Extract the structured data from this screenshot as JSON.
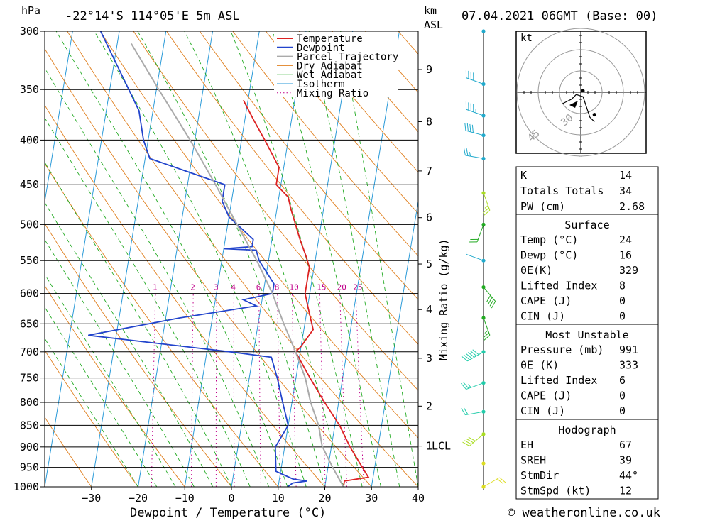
{
  "header": {
    "location": "-22°14'S 114°05'E 5m ASL",
    "datetime": "07.04.2021 06GMT (Base: 00)",
    "hpa_unit": "hPa",
    "km_unit": "km",
    "asl_unit": "ASL",
    "copyright": "© weatheronline.co.uk"
  },
  "chart_data": {
    "type": "line",
    "title": "",
    "xlabel": "Dewpoint / Temperature (°C)",
    "ylabel": "hPa",
    "right_ylabel": "Mixing Ratio (g/kg)",
    "xlim": [
      -40,
      40
    ],
    "ylim": [
      1000,
      300
    ],
    "y_log": true,
    "skew": true,
    "x_ticks": [
      -30,
      -20,
      -10,
      0,
      10,
      20,
      30,
      40
    ],
    "pressure_levels": [
      300,
      350,
      400,
      450,
      500,
      550,
      600,
      650,
      700,
      750,
      800,
      850,
      900,
      950,
      1000
    ],
    "km_ticks": [
      {
        "label": "9",
        "p": 332
      },
      {
        "label": "8",
        "p": 381
      },
      {
        "label": "7",
        "p": 434
      },
      {
        "label": "6",
        "p": 491
      },
      {
        "label": "5",
        "p": 555
      },
      {
        "label": "4",
        "p": 626
      },
      {
        "label": "3",
        "p": 712
      },
      {
        "label": "2",
        "p": 808
      },
      {
        "label": "1",
        "p": 898
      }
    ],
    "lcl_label": "LCL",
    "lcl_p": 898,
    "mixing_ratios": [
      "1",
      "2",
      "3",
      "4",
      "6",
      "8",
      "10",
      "15",
      "20",
      "25"
    ],
    "mixing_ratio_values": [
      1,
      2,
      3,
      4,
      6,
      8,
      10,
      15,
      20,
      25
    ],
    "legend": [
      "Temperature",
      "Dewpoint",
      "Parcel Trajectory",
      "Dry Adiabat",
      "Wet Adiabat",
      "Isotherm",
      "Mixing Ratio"
    ],
    "colors": {
      "temperature": "#dd2222",
      "dewpoint": "#2244cc",
      "parcel": "#aaaaaa",
      "dry_adiabat": "#e08020",
      "wet_adiabat": "#22aa22",
      "isotherm": "#2a9ad8",
      "mixing_ratio": "#c0008a"
    },
    "series": [
      {
        "name": "Temperature",
        "points": [
          [
            1000,
            24
          ],
          [
            985,
            24
          ],
          [
            975,
            29
          ],
          [
            960,
            28
          ],
          [
            900,
            24
          ],
          [
            850,
            21
          ],
          [
            800,
            17
          ],
          [
            750,
            13
          ],
          [
            700,
            9
          ],
          [
            690,
            10
          ],
          [
            660,
            12
          ],
          [
            640,
            11
          ],
          [
            620,
            10
          ],
          [
            600,
            9
          ],
          [
            580,
            9
          ],
          [
            560,
            9
          ],
          [
            545,
            8
          ],
          [
            520,
            6
          ],
          [
            480,
            3
          ],
          [
            465,
            2
          ],
          [
            450,
            -1
          ],
          [
            430,
            -1
          ],
          [
            400,
            -5
          ],
          [
            380,
            -8
          ],
          [
            360,
            -11
          ]
        ]
      },
      {
        "name": "Dewpoint",
        "points": [
          [
            1000,
            12
          ],
          [
            990,
            13
          ],
          [
            985,
            16
          ],
          [
            980,
            13
          ],
          [
            975,
            12
          ],
          [
            960,
            9
          ],
          [
            900,
            8
          ],
          [
            850,
            10
          ],
          [
            800,
            8
          ],
          [
            750,
            6
          ],
          [
            710,
            4
          ],
          [
            700,
            -5
          ],
          [
            670,
            -36
          ],
          [
            640,
            -17
          ],
          [
            620,
            -1
          ],
          [
            610,
            -4
          ],
          [
            605,
            -1
          ],
          [
            600,
            2
          ],
          [
            585,
            2
          ],
          [
            550,
            -2
          ],
          [
            535,
            -3
          ],
          [
            533,
            -10
          ],
          [
            530,
            -4
          ],
          [
            520,
            -4
          ],
          [
            490,
            -10
          ],
          [
            470,
            -12
          ],
          [
            450,
            -12
          ],
          [
            420,
            -29
          ],
          [
            400,
            -31
          ],
          [
            370,
            -33
          ],
          [
            300,
            -44
          ]
        ]
      },
      {
        "name": "Parcel Trajectory",
        "points": [
          [
            1000,
            24
          ],
          [
            950,
            21
          ],
          [
            898,
            18
          ],
          [
            850,
            16.5
          ],
          [
            800,
            14
          ],
          [
            750,
            12
          ],
          [
            700,
            9
          ],
          [
            650,
            5.5
          ],
          [
            600,
            2
          ],
          [
            550,
            -2.5
          ],
          [
            500,
            -8
          ],
          [
            450,
            -14
          ],
          [
            400,
            -21
          ],
          [
            350,
            -29.5
          ],
          [
            310,
            -37
          ]
        ]
      }
    ]
  },
  "hodograph": {
    "unit": "kt",
    "ring_labels": [
      "30",
      "45"
    ],
    "points": [
      [
        8,
        5
      ],
      [
        4,
        3
      ],
      [
        2,
        1
      ],
      [
        -1,
        2
      ],
      [
        -4,
        11
      ],
      [
        -6,
        13
      ]
    ]
  },
  "indices": {
    "basic": [
      {
        "label": "K",
        "value": "14"
      },
      {
        "label": "Totals Totals",
        "value": "34"
      },
      {
        "label": "PW (cm)",
        "value": "2.68"
      }
    ],
    "surface_title": "Surface",
    "surface": [
      {
        "label": "Temp (°C)",
        "value": "24"
      },
      {
        "label": "Dewp (°C)",
        "value": "16"
      },
      {
        "label": "θE(K)",
        "value": "329"
      },
      {
        "label": "Lifted Index",
        "value": "8"
      },
      {
        "label": "CAPE (J)",
        "value": "0"
      },
      {
        "label": "CIN (J)",
        "value": "0"
      }
    ],
    "mu_title": "Most Unstable",
    "mu": [
      {
        "label": "Pressure (mb)",
        "value": "991"
      },
      {
        "label": "θE (K)",
        "value": "333"
      },
      {
        "label": "Lifted Index",
        "value": "6"
      },
      {
        "label": "CAPE (J)",
        "value": "0"
      },
      {
        "label": "CIN (J)",
        "value": "0"
      }
    ],
    "hodo_title": "Hodograph",
    "hodo": [
      {
        "label": "EH",
        "value": "67"
      },
      {
        "label": "SREH",
        "value": "39"
      },
      {
        "label": "StmDir",
        "value": "44°"
      },
      {
        "label": "StmSpd (kt)",
        "value": "12"
      }
    ]
  },
  "wind_profile": {
    "barbs": [
      {
        "p": 300,
        "dir": 0,
        "spd": 0,
        "color": "#22aacc"
      },
      {
        "p": 345,
        "dir": 290,
        "spd": 20,
        "color": "#22aacc"
      },
      {
        "p": 375,
        "dir": 290,
        "spd": 25,
        "color": "#22aacc"
      },
      {
        "p": 395,
        "dir": 285,
        "spd": 20,
        "color": "#22aacc"
      },
      {
        "p": 420,
        "dir": 280,
        "spd": 15,
        "color": "#22aacc"
      },
      {
        "p": 460,
        "dir": 160,
        "spd": 15,
        "color": "#aadd22"
      },
      {
        "p": 500,
        "dir": 200,
        "spd": 10,
        "color": "#22aa22"
      },
      {
        "p": 550,
        "dir": 290,
        "spd": 5,
        "color": "#22aacc"
      },
      {
        "p": 590,
        "dir": 140,
        "spd": 20,
        "color": "#22aa22"
      },
      {
        "p": 640,
        "dir": 160,
        "spd": 15,
        "color": "#22aa22"
      },
      {
        "p": 700,
        "dir": 240,
        "spd": 30,
        "color": "#22ccaa"
      },
      {
        "p": 760,
        "dir": 250,
        "spd": 15,
        "color": "#22ccaa"
      },
      {
        "p": 820,
        "dir": 260,
        "spd": 10,
        "color": "#22ccaa"
      },
      {
        "p": 870,
        "dir": 230,
        "spd": 20,
        "color": "#aadd22"
      },
      {
        "p": 940,
        "dir": 0,
        "spd": 0,
        "color": "#dddd22"
      },
      {
        "p": 1000,
        "dir": 60,
        "spd": 10,
        "color": "#dddd22"
      }
    ]
  }
}
